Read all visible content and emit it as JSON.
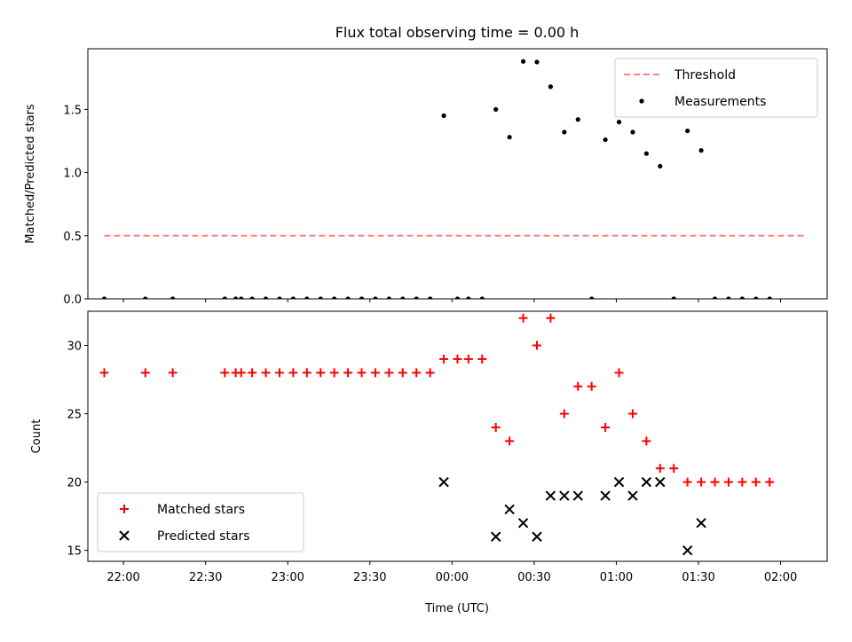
{
  "figure": {
    "title": "Flux total observing time = 0.00 h",
    "xlabel": "Time (UTC)"
  },
  "colors": {
    "threshold": "#ff7f7f",
    "measurements": "#000000",
    "matched": "#ff0000",
    "predicted": "#000000",
    "axes": "#000000"
  },
  "chart_data": [
    {
      "type": "scatter",
      "ylabel": "Matched/Predicted stars",
      "ylim": [
        0,
        1.98
      ],
      "yticks": [
        0.0,
        0.5,
        1.0,
        1.5
      ],
      "ytick_labels": [
        "0.0",
        "0.5",
        "1.0",
        "1.5"
      ],
      "xlim": [
        "21:47",
        "02:17"
      ],
      "legend_position": "top-right",
      "series": [
        {
          "name": "Threshold",
          "kind": "dashed-line",
          "color": "#ff7f7f",
          "x": [
            "21:53",
            "02:09"
          ],
          "y": [
            0.5,
            0.5
          ]
        },
        {
          "name": "Measurements",
          "kind": "dot",
          "color": "#000000",
          "x": [
            "21:53",
            "22:08",
            "22:18",
            "22:37",
            "22:41",
            "22:43",
            "22:47",
            "22:52",
            "22:57",
            "23:02",
            "23:07",
            "23:12",
            "23:17",
            "23:22",
            "23:27",
            "23:32",
            "23:37",
            "23:42",
            "23:47",
            "23:52",
            "23:57",
            "00:02",
            "00:06",
            "00:11",
            "00:16",
            "00:21",
            "00:26",
            "00:31",
            "00:36",
            "00:41",
            "00:46",
            "00:51",
            "00:56",
            "01:01",
            "01:06",
            "01:11",
            "01:16",
            "01:21",
            "01:26",
            "01:31",
            "01:36",
            "01:41",
            "01:46",
            "01:51",
            "01:56"
          ],
          "y": [
            0,
            0,
            0,
            0,
            0,
            0,
            0,
            0,
            0,
            0,
            0,
            0,
            0,
            0,
            0,
            0,
            0,
            0,
            0,
            0,
            1.45,
            0,
            0,
            0,
            1.5,
            1.28,
            1.88,
            1.875,
            1.68,
            1.32,
            1.42,
            0,
            1.26,
            1.4,
            1.32,
            1.15,
            1.05,
            0,
            1.33,
            1.175,
            0,
            0,
            0,
            0,
            0
          ]
        }
      ]
    },
    {
      "type": "scatter",
      "ylabel": "Count",
      "ylim": [
        14.2,
        32.5
      ],
      "yticks": [
        15,
        20,
        25,
        30
      ],
      "ytick_labels": [
        "15",
        "20",
        "25",
        "30"
      ],
      "xlim": [
        "21:47",
        "02:17"
      ],
      "xticks": [
        "22:00",
        "22:30",
        "23:00",
        "23:30",
        "00:00",
        "00:30",
        "01:00",
        "01:30",
        "02:00"
      ],
      "legend_position": "bottom-left",
      "series": [
        {
          "name": "Matched stars",
          "kind": "plus",
          "color": "#ff0000",
          "x": [
            "21:53",
            "22:08",
            "22:18",
            "22:37",
            "22:41",
            "22:43",
            "22:47",
            "22:52",
            "22:57",
            "23:02",
            "23:07",
            "23:12",
            "23:17",
            "23:22",
            "23:27",
            "23:32",
            "23:37",
            "23:42",
            "23:47",
            "23:52",
            "23:57",
            "00:02",
            "00:06",
            "00:11",
            "00:16",
            "00:21",
            "00:26",
            "00:31",
            "00:36",
            "00:41",
            "00:46",
            "00:51",
            "00:56",
            "01:01",
            "01:06",
            "01:11",
            "01:16",
            "01:21",
            "01:26",
            "01:31",
            "01:36",
            "01:41",
            "01:46",
            "01:51",
            "01:56"
          ],
          "y": [
            28,
            28,
            28,
            28,
            28,
            28,
            28,
            28,
            28,
            28,
            28,
            28,
            28,
            28,
            28,
            28,
            28,
            28,
            28,
            28,
            29,
            29,
            29,
            29,
            24,
            23,
            32,
            30,
            32,
            25,
            27,
            27,
            24,
            28,
            25,
            23,
            21,
            21,
            20,
            20,
            20,
            20,
            20,
            20,
            20
          ]
        },
        {
          "name": "Predicted stars",
          "kind": "x",
          "color": "#000000",
          "x": [
            "23:57",
            "00:16",
            "00:21",
            "00:26",
            "00:31",
            "00:36",
            "00:41",
            "00:46",
            "00:56",
            "01:01",
            "01:06",
            "01:11",
            "01:16",
            "01:26",
            "01:31"
          ],
          "y": [
            20,
            16,
            18,
            17,
            16,
            19,
            19,
            19,
            19,
            20,
            19,
            20,
            20,
            15,
            17
          ]
        }
      ]
    }
  ]
}
